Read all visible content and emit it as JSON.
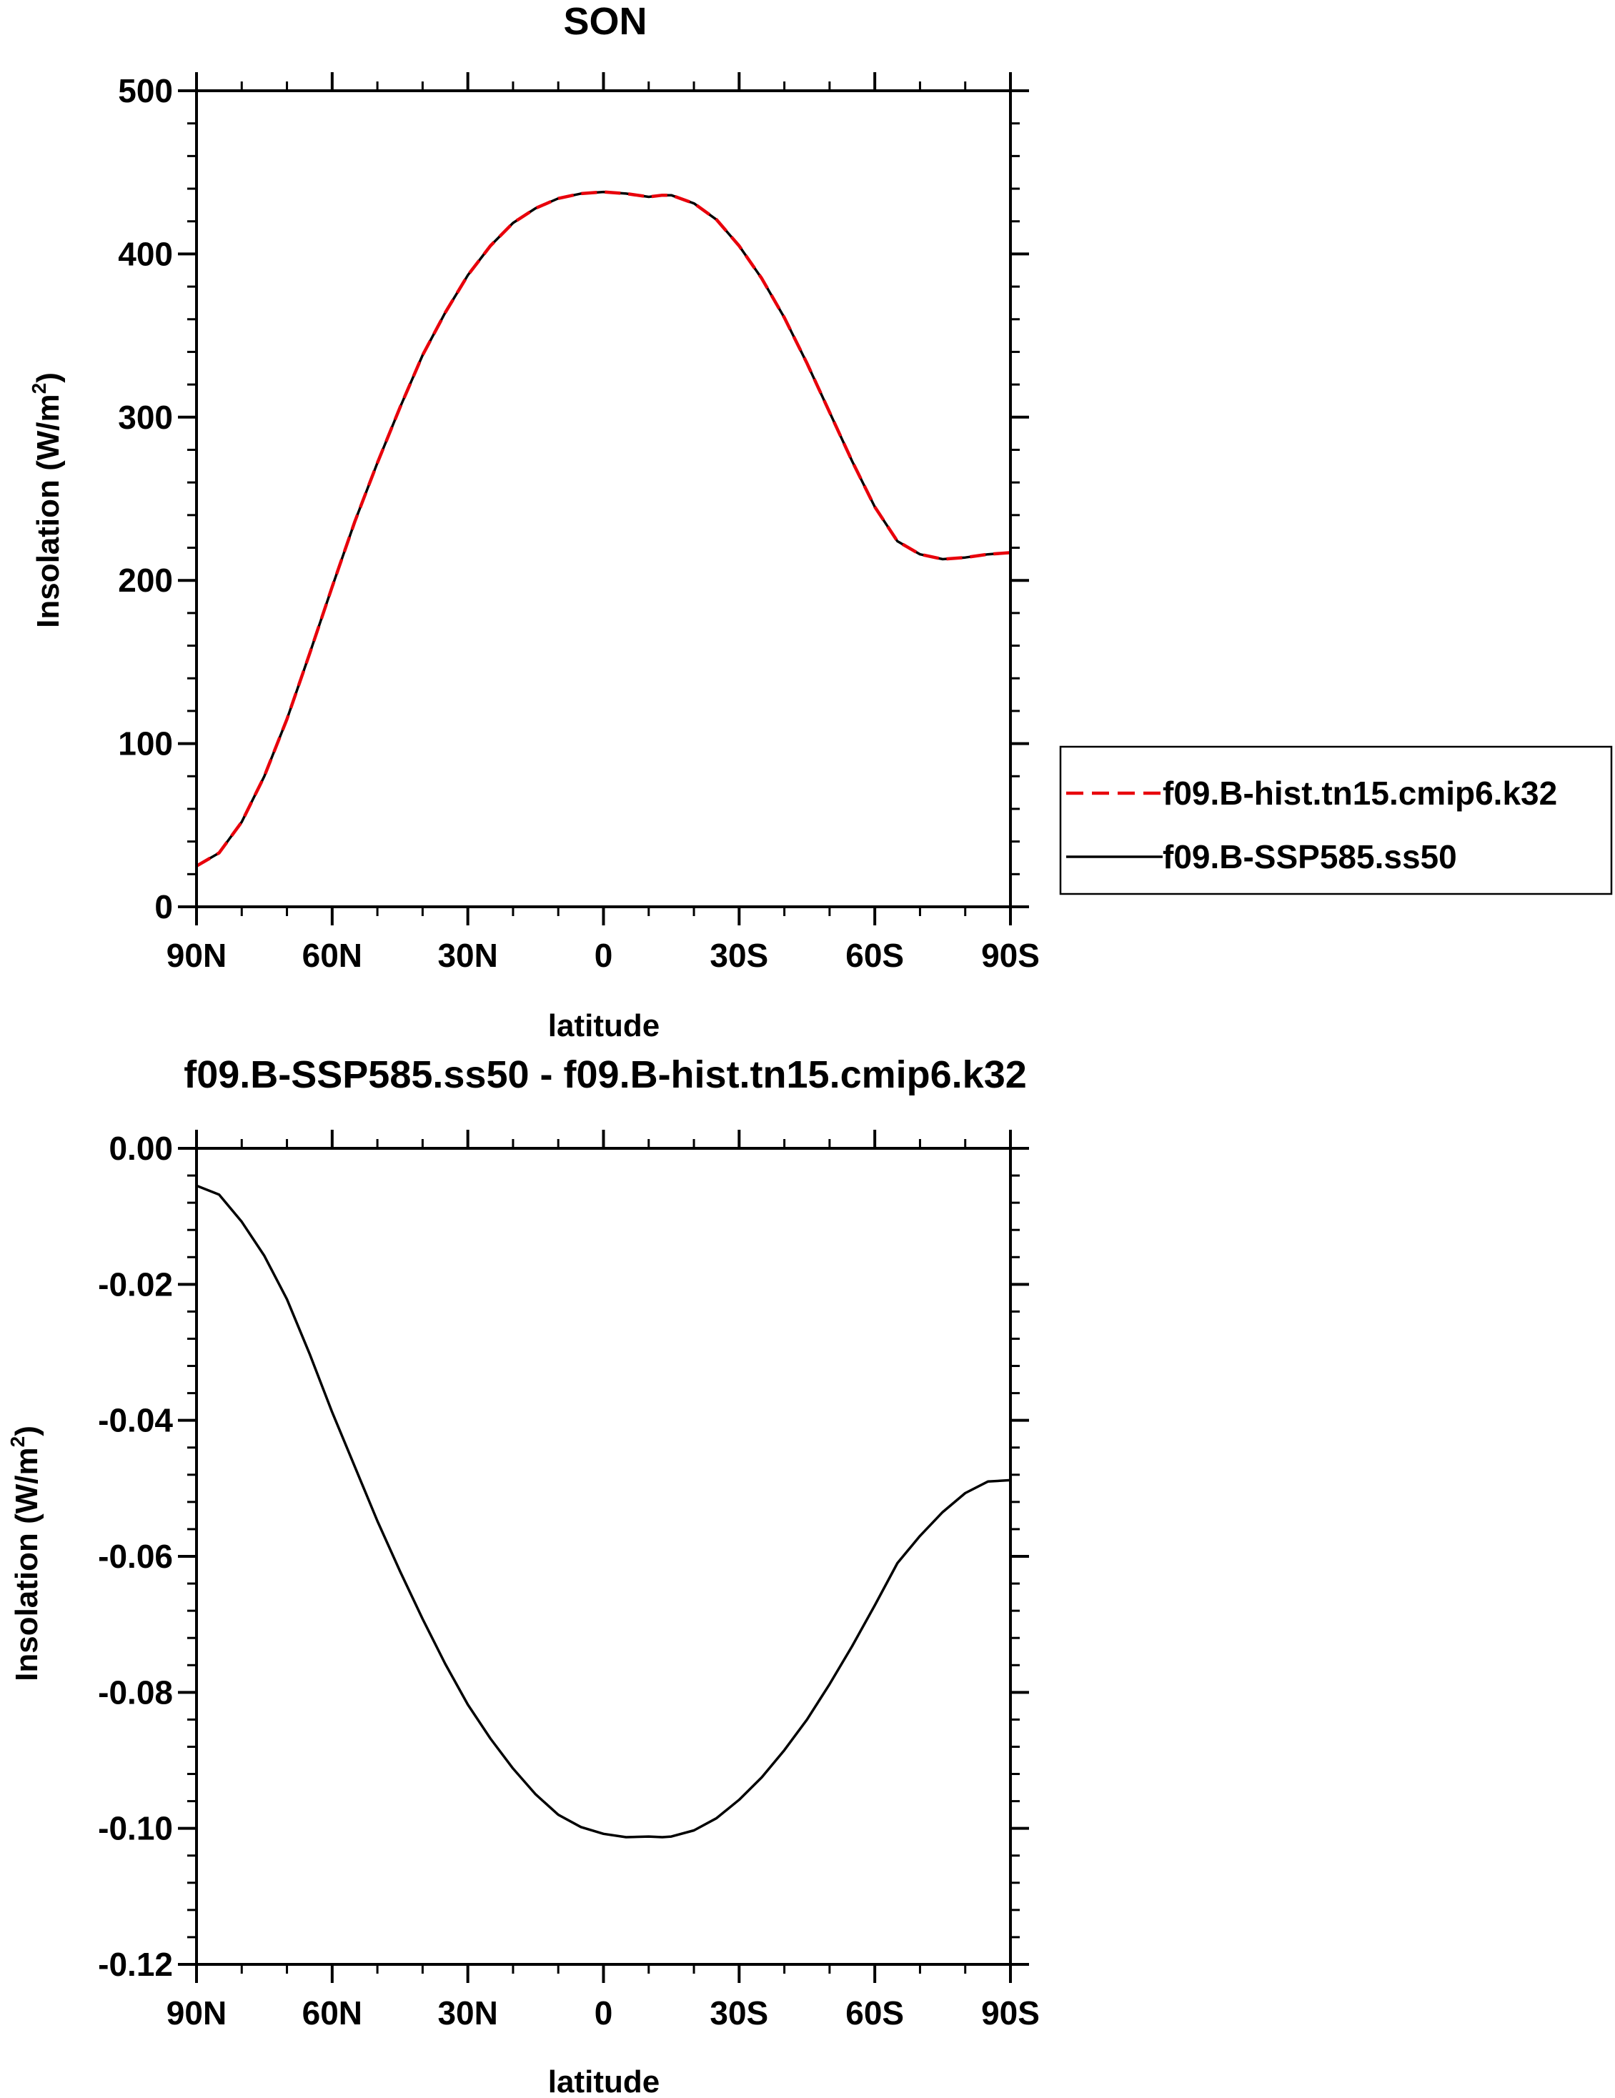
{
  "chart_data": [
    {
      "type": "line",
      "title": "SON",
      "xlabel": "latitude",
      "ylabel": "Insolation (W/m",
      "ylabel_sup": "2",
      "ylabel_close": ")",
      "xlim": [
        -90,
        90
      ],
      "ylim": [
        0,
        500
      ],
      "x_ticks": [
        -90,
        -60,
        -30,
        0,
        30,
        60,
        90
      ],
      "x_tick_labels": [
        "90N",
        "60N",
        "30N",
        "0",
        "30S",
        "60S",
        "90S"
      ],
      "y_ticks": [
        0,
        100,
        200,
        300,
        400,
        500
      ],
      "y_tick_labels": [
        "0",
        "100",
        "200",
        "300",
        "400",
        "500"
      ],
      "x": [
        -90,
        -85,
        -80,
        -75,
        -70,
        -65,
        -60,
        -55,
        -50,
        -45,
        -40,
        -35,
        -30,
        -25,
        -20,
        -15,
        -10,
        -5,
        0,
        5,
        10,
        13,
        15,
        20,
        25,
        30,
        35,
        40,
        45,
        50,
        55,
        60,
        65,
        70,
        75,
        80,
        85,
        90
      ],
      "series": [
        {
          "name": "f09.B-hist.tn15.cmip6.k32",
          "color": "#e8000b",
          "style": "dashed",
          "values": [
            25,
            33,
            52,
            80,
            115,
            155,
            196,
            236,
            272,
            306,
            338,
            364,
            387,
            405,
            419,
            428,
            434,
            437,
            438,
            437,
            435,
            436,
            436,
            431,
            421,
            405,
            385,
            361,
            333,
            303,
            273,
            245,
            224,
            216,
            213,
            214,
            216,
            217
          ]
        },
        {
          "name": "f09.B-SSP585.ss50",
          "color": "#000000",
          "style": "solid",
          "values": [
            25,
            33,
            52,
            80,
            115,
            155,
            196,
            236,
            272,
            306,
            338,
            364,
            387,
            405,
            419,
            428,
            434,
            437,
            438,
            437,
            435,
            436,
            436,
            431,
            421,
            405,
            385,
            361,
            333,
            303,
            273,
            245,
            224,
            216,
            213,
            214,
            216,
            217
          ]
        }
      ],
      "legend": {
        "placement": "right",
        "entries": [
          "f09.B-hist.tn15.cmip6.k32",
          "f09.B-SSP585.ss50"
        ]
      }
    },
    {
      "type": "line",
      "title": "f09.B-SSP585.ss50 - f09.B-hist.tn15.cmip6.k32",
      "xlabel": "latitude",
      "ylabel": "Insolation (W/m",
      "ylabel_sup": "2",
      "ylabel_close": ")",
      "xlim": [
        -90,
        90
      ],
      "ylim": [
        -0.12,
        0.0
      ],
      "x_ticks": [
        -90,
        -60,
        -30,
        0,
        30,
        60,
        90
      ],
      "x_tick_labels": [
        "90N",
        "60N",
        "30N",
        "0",
        "30S",
        "60S",
        "90S"
      ],
      "y_ticks": [
        0.0,
        -0.02,
        -0.04,
        -0.06,
        -0.08,
        -0.1,
        -0.12
      ],
      "y_tick_labels": [
        "0.00",
        "-0.02",
        "-0.04",
        "-0.06",
        "-0.08",
        "-0.10",
        "-0.12"
      ],
      "x": [
        -90,
        -85,
        -80,
        -75,
        -70,
        -65,
        -60,
        -55,
        -50,
        -45,
        -40,
        -35,
        -30,
        -25,
        -20,
        -15,
        -10,
        -5,
        0,
        5,
        10,
        13,
        15,
        20,
        25,
        30,
        35,
        40,
        45,
        50,
        55,
        60,
        65,
        70,
        75,
        80,
        85,
        90
      ],
      "series": [
        {
          "name": "f09.B-SSP585.ss50 - f09.B-hist.tn15.cmip6.k32",
          "color": "#000000",
          "style": "solid",
          "values": [
            -0.0055,
            -0.0068,
            -0.0108,
            -0.0158,
            -0.0222,
            -0.0302,
            -0.0388,
            -0.0468,
            -0.0548,
            -0.0622,
            -0.0692,
            -0.0758,
            -0.0818,
            -0.0868,
            -0.0912,
            -0.095,
            -0.098,
            -0.0998,
            -0.1008,
            -0.1013,
            -0.1012,
            -0.1013,
            -0.1012,
            -0.1003,
            -0.0985,
            -0.0958,
            -0.0925,
            -0.0885,
            -0.084,
            -0.0788,
            -0.0732,
            -0.0672,
            -0.061,
            -0.057,
            -0.0535,
            -0.0507,
            -0.049,
            -0.0488
          ]
        }
      ]
    }
  ]
}
